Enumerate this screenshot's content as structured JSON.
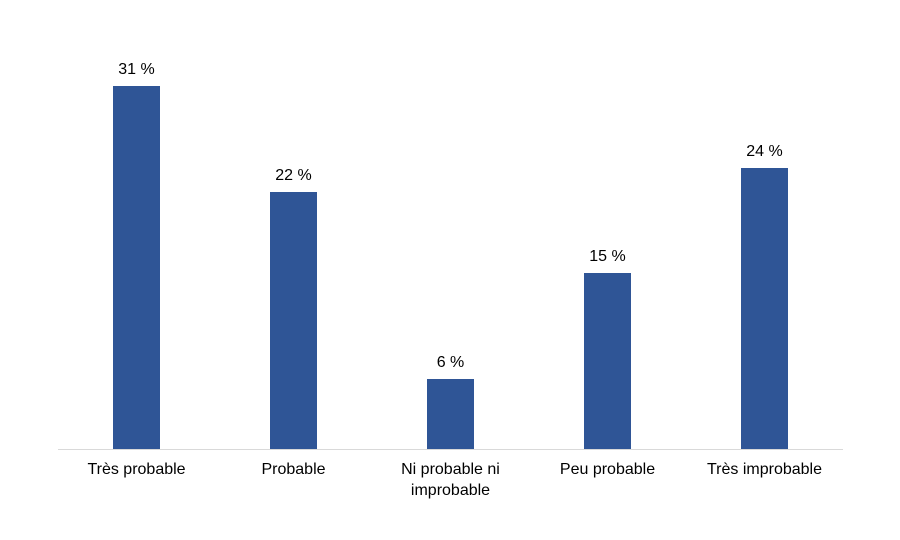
{
  "chart_data": {
    "type": "bar",
    "title": "",
    "xlabel": "",
    "ylabel": "",
    "unit": "%",
    "categories": [
      "Très probable",
      "Probable",
      "Ni probable ni improbable",
      "Peu probable",
      "Très improbable"
    ],
    "values": [
      31,
      22,
      6,
      15,
      24
    ],
    "data_labels": [
      "31 %",
      "22 %",
      "6 %",
      "15 %",
      "24 %"
    ],
    "ylim": [
      0,
      33
    ],
    "grid": false,
    "legend_position": "none",
    "bar_color": "#2F5596",
    "axis_line_color": "#D9D9D9",
    "text_color": "#000000",
    "background_color": "#FFFFFF"
  }
}
